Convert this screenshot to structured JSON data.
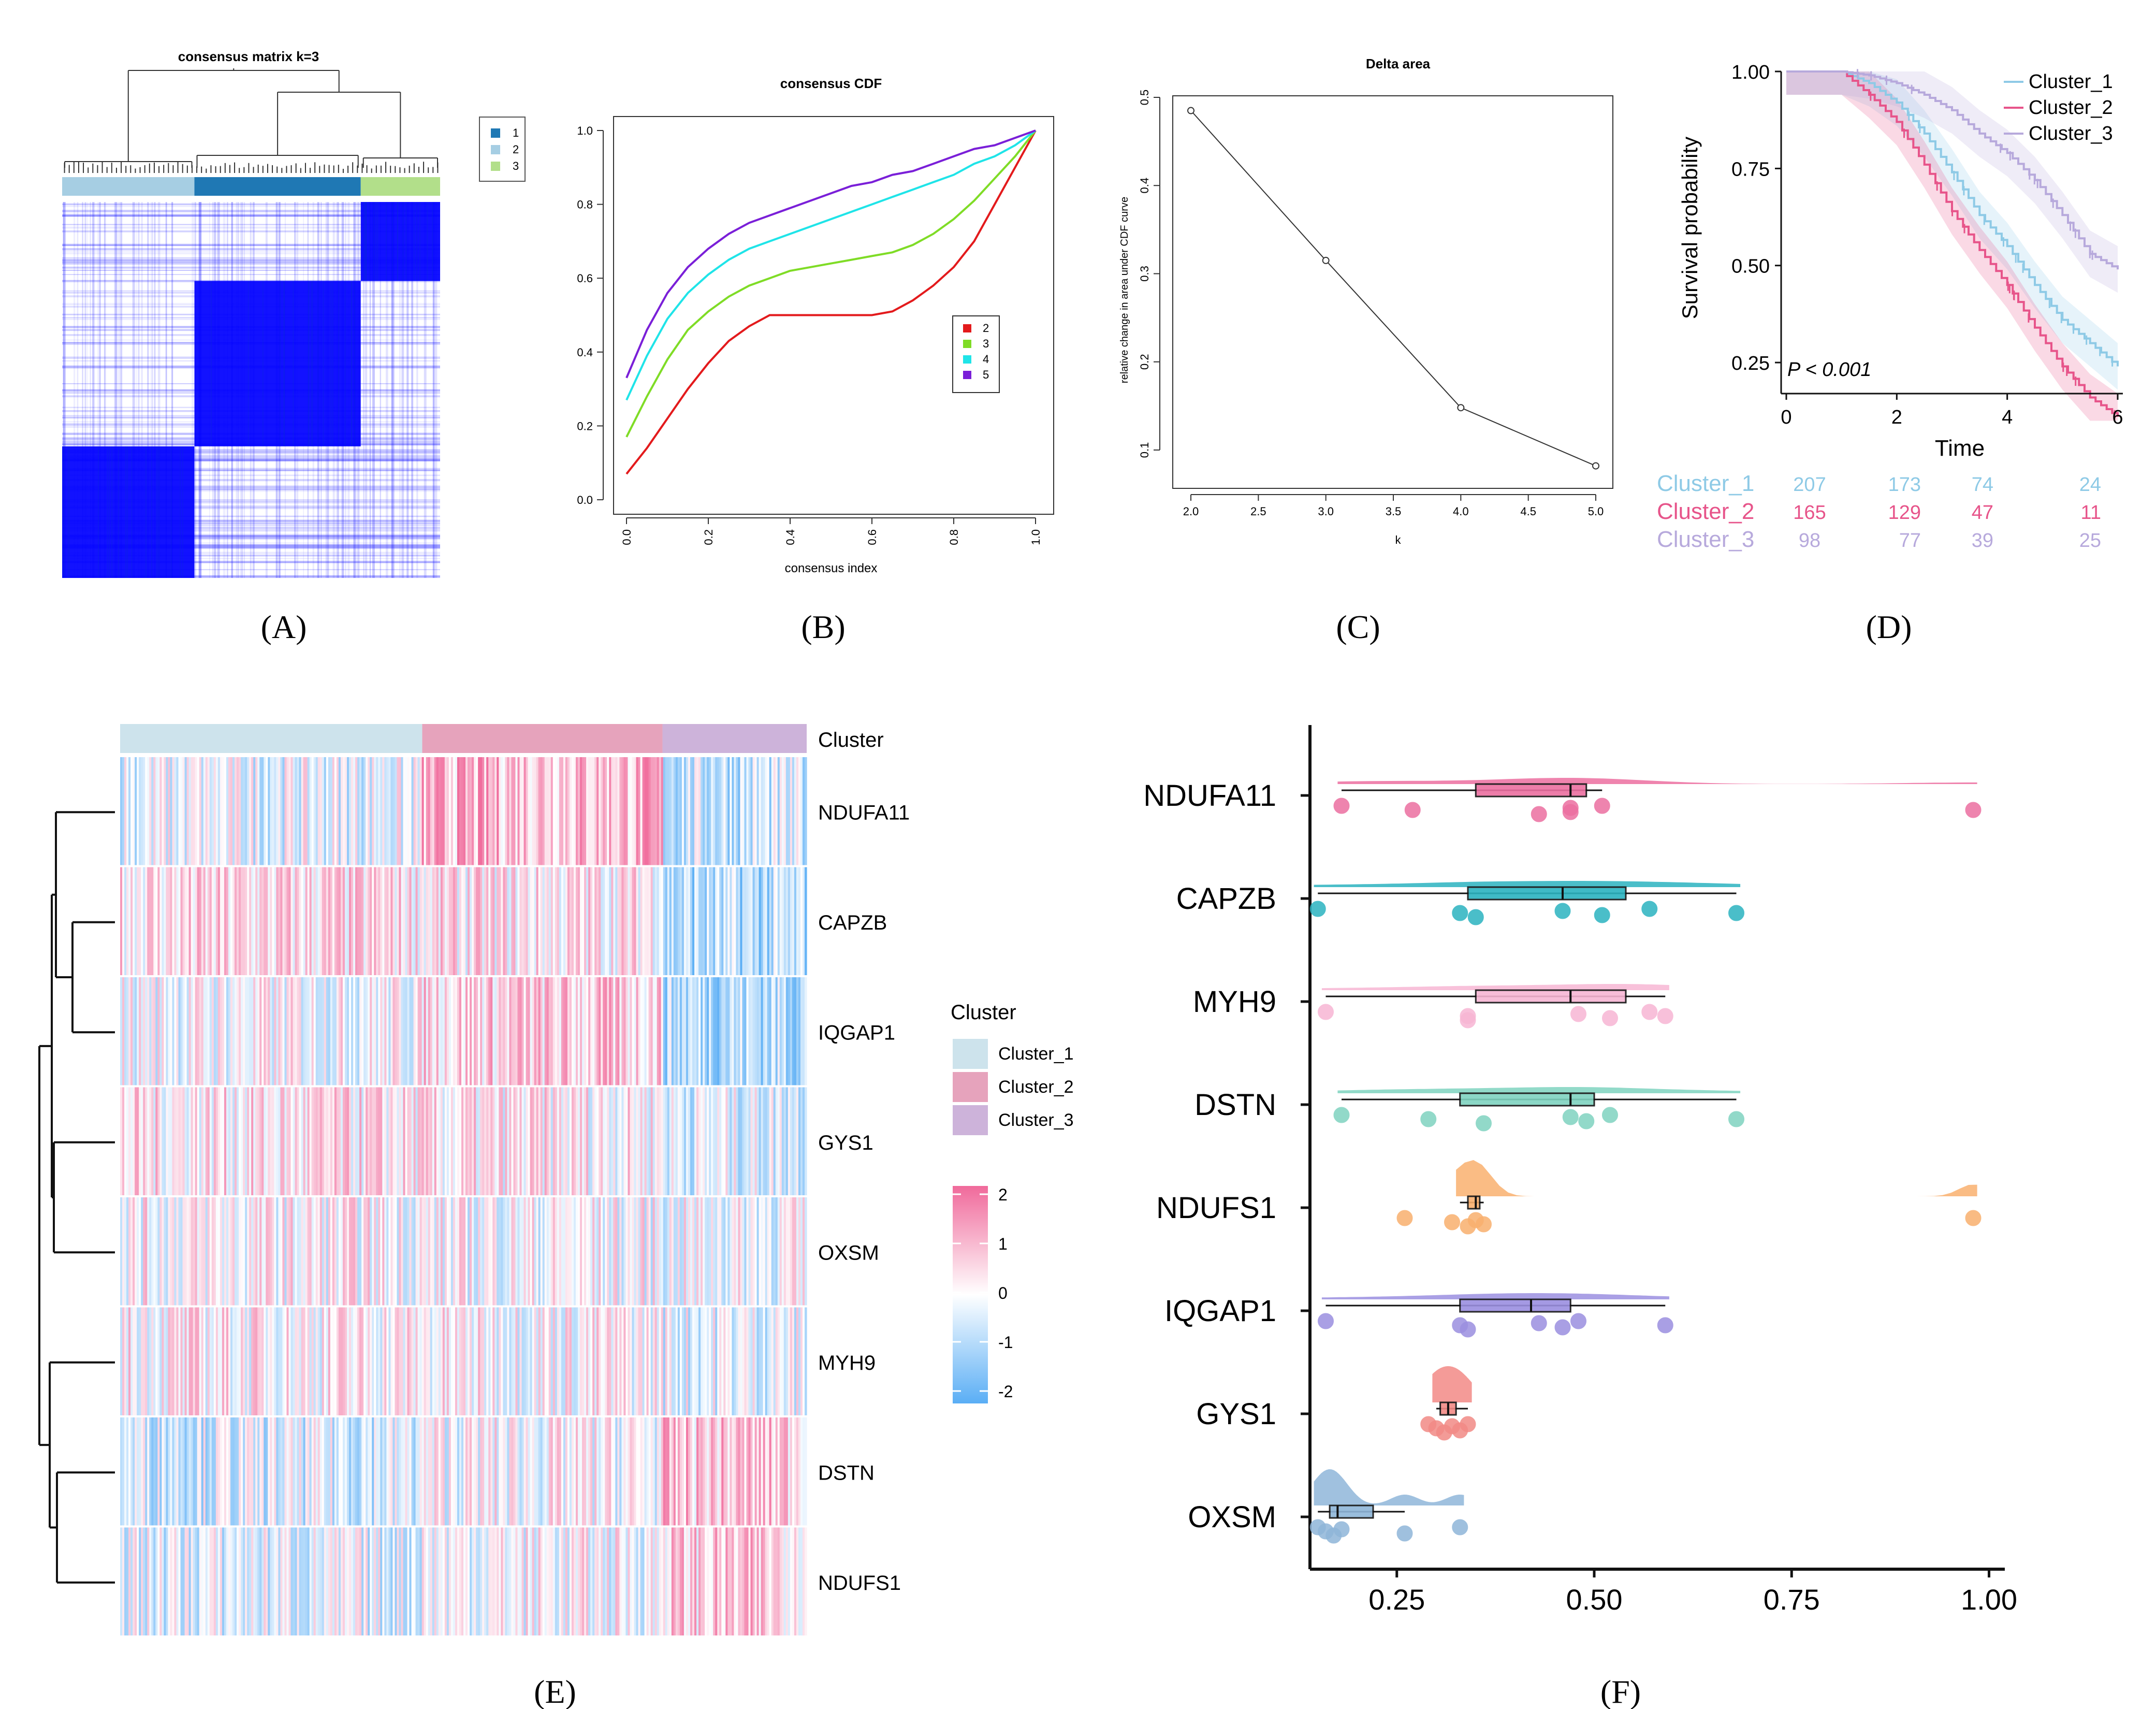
{
  "panel_labels": [
    "(A)",
    "(B)",
    "(C)",
    "(D)",
    "(E)",
    "(F)"
  ],
  "colors": {
    "cluster1": "#a6cee3",
    "cluster2": "#1f78b4",
    "cluster3": "#b2df8a",
    "heat_high": "#0000ff",
    "k2": "#e31a1c",
    "k3": "#7fdc26",
    "k4": "#1fe4e8",
    "k5": "#7a1fd8",
    "km1": "#8ecae6",
    "km2": "#e7548a",
    "km3": "#b7a9dc",
    "e_c1": "#cde3ec",
    "e_c2": "#e6a3bc",
    "e_c3": "#cdb3da",
    "hi": "#f06a9b",
    "lo": "#5aaef5"
  },
  "chart_data": [
    {
      "type": "heatmap",
      "title": "consensus matrix k=3",
      "legend": [
        "1",
        "2",
        "3"
      ],
      "cluster_bar_fractions": [
        0.35,
        0.44,
        0.21
      ],
      "blocks": [
        {
          "cluster": "1",
          "fraction": 0.35,
          "consensus": 1.0
        },
        {
          "cluster": "2",
          "fraction": 0.44,
          "consensus": 1.0
        },
        {
          "cluster": "3",
          "fraction": 0.21,
          "consensus": 1.0
        }
      ]
    },
    {
      "type": "line",
      "title": "consensus CDF",
      "xlabel": "consensus index",
      "ylabel": "",
      "xlim": [
        0,
        1
      ],
      "ylim": [
        0,
        1
      ],
      "x_ticks": [
        "0.0",
        "0.2",
        "0.4",
        "0.6",
        "0.8",
        "1.0"
      ],
      "y_ticks": [
        "0.0",
        "0.2",
        "0.4",
        "0.6",
        "0.8",
        "1.0"
      ],
      "x": [
        0.0,
        0.05,
        0.1,
        0.15,
        0.2,
        0.25,
        0.3,
        0.35,
        0.4,
        0.45,
        0.5,
        0.55,
        0.6,
        0.65,
        0.7,
        0.75,
        0.8,
        0.85,
        0.9,
        0.95,
        1.0
      ],
      "series": [
        {
          "name": "2",
          "values": [
            0.07,
            0.14,
            0.22,
            0.3,
            0.37,
            0.43,
            0.47,
            0.5,
            0.5,
            0.5,
            0.5,
            0.5,
            0.5,
            0.51,
            0.54,
            0.58,
            0.63,
            0.7,
            0.8,
            0.9,
            1.0
          ]
        },
        {
          "name": "3",
          "values": [
            0.17,
            0.28,
            0.38,
            0.46,
            0.51,
            0.55,
            0.58,
            0.6,
            0.62,
            0.63,
            0.64,
            0.65,
            0.66,
            0.67,
            0.69,
            0.72,
            0.76,
            0.81,
            0.87,
            0.93,
            1.0
          ]
        },
        {
          "name": "4",
          "values": [
            0.27,
            0.39,
            0.49,
            0.56,
            0.61,
            0.65,
            0.68,
            0.7,
            0.72,
            0.74,
            0.76,
            0.78,
            0.8,
            0.82,
            0.84,
            0.86,
            0.88,
            0.91,
            0.93,
            0.96,
            1.0
          ]
        },
        {
          "name": "5",
          "values": [
            0.33,
            0.46,
            0.56,
            0.63,
            0.68,
            0.72,
            0.75,
            0.77,
            0.79,
            0.81,
            0.83,
            0.85,
            0.86,
            0.88,
            0.89,
            0.91,
            0.93,
            0.95,
            0.96,
            0.98,
            1.0
          ]
        }
      ]
    },
    {
      "type": "line",
      "title": "Delta area",
      "xlabel": "k",
      "ylabel": "relative change in area under CDF curve",
      "xlim": [
        2,
        5
      ],
      "ylim": [
        0.1,
        0.5
      ],
      "x_ticks": [
        "2.0",
        "2.5",
        "3.0",
        "3.5",
        "4.0",
        "4.5",
        "5.0"
      ],
      "y_ticks": [
        "0.1",
        "0.2",
        "0.3",
        "0.4",
        "0.5"
      ],
      "x": [
        2,
        3,
        4,
        5
      ],
      "series": [
        {
          "values": [
            0.485,
            0.315,
            0.148,
            0.082
          ]
        }
      ]
    },
    {
      "type": "line",
      "title": "",
      "xlabel": "Time",
      "ylabel": "Survival probability",
      "xlim": [
        0,
        6
      ],
      "ylim": [
        0,
        1
      ],
      "x_ticks": [
        "0",
        "2",
        "4",
        "6"
      ],
      "y_ticks": [
        "0.25",
        "0.50",
        "0.75",
        "1.00"
      ],
      "annotation": "P < 0.001",
      "legend_position": "top-right",
      "series": [
        {
          "name": "Cluster_1",
          "x": [
            0,
            1.0,
            1.5,
            2.0,
            2.5,
            3.0,
            3.5,
            4.0,
            4.5,
            5.0,
            5.5,
            6.0
          ],
          "values": [
            1.0,
            1.0,
            0.97,
            0.92,
            0.84,
            0.74,
            0.63,
            0.55,
            0.45,
            0.36,
            0.3,
            0.24
          ]
        },
        {
          "name": "Cluster_2",
          "x": [
            0,
            1.0,
            1.5,
            2.0,
            2.5,
            3.0,
            3.5,
            4.0,
            4.5,
            5.0,
            5.5,
            6.0
          ],
          "values": [
            1.0,
            1.0,
            0.94,
            0.87,
            0.76,
            0.64,
            0.54,
            0.45,
            0.34,
            0.24,
            0.16,
            0.11
          ]
        },
        {
          "name": "Cluster_3",
          "x": [
            0,
            1.0,
            1.5,
            2.0,
            2.5,
            3.0,
            3.5,
            4.0,
            4.5,
            5.0,
            5.5,
            6.0
          ],
          "values": [
            1.0,
            1.0,
            0.99,
            0.97,
            0.94,
            0.9,
            0.84,
            0.79,
            0.72,
            0.63,
            0.53,
            0.49
          ]
        }
      ],
      "risk_table": [
        {
          "name": "Cluster_1",
          "counts": [
            "207",
            "173",
            "74",
            "24"
          ]
        },
        {
          "name": "Cluster_2",
          "counts": [
            "165",
            "129",
            "47",
            "11"
          ]
        },
        {
          "name": "Cluster_3",
          "counts": [
            "98",
            "77",
            "39",
            "25"
          ]
        }
      ]
    },
    {
      "type": "heatmap",
      "title": "",
      "annotation_label": "Cluster",
      "rows": [
        "NDUFA11",
        "CAPZB",
        "IQGAP1",
        "GYS1",
        "OXSM",
        "MYH9",
        "DSTN",
        "NDUFS1"
      ],
      "column_groups": [
        {
          "name": "Cluster_1",
          "fraction": 0.44
        },
        {
          "name": "Cluster_2",
          "fraction": 0.35
        },
        {
          "name": "Cluster_3",
          "fraction": 0.21
        }
      ],
      "row_means_by_group": [
        [
          -0.2,
          0.9,
          -0.6
        ],
        [
          0.4,
          0.3,
          -0.9
        ],
        [
          0.0,
          0.6,
          -0.8
        ],
        [
          0.3,
          0.2,
          -0.3
        ],
        [
          0.1,
          0.0,
          -0.1
        ],
        [
          0.2,
          0.1,
          -0.2
        ],
        [
          -0.4,
          0.0,
          0.7
        ],
        [
          -0.3,
          0.0,
          0.6
        ]
      ],
      "legend_title": "Cluster",
      "legend_items": [
        "Cluster_1",
        "Cluster_2",
        "Cluster_3"
      ],
      "scale_ticks": [
        "2",
        "1",
        "0",
        "-1",
        "-2"
      ],
      "scale_range": [
        -2,
        2
      ]
    },
    {
      "type": "scatter",
      "title": "",
      "xlabel": "",
      "ylabel": "",
      "xlim": [
        0.14,
        1.02
      ],
      "x_ticks": [
        "0.25",
        "0.50",
        "0.75",
        "1.00"
      ],
      "categories": [
        "NDUFA11",
        "CAPZB",
        "MYH9",
        "DSTN",
        "NDUFS1",
        "IQGAP1",
        "GYS1",
        "OXSM"
      ],
      "series": [
        {
          "name": "NDUFA11",
          "color": "#ec6fa0",
          "points": [
            0.18,
            0.27,
            0.43,
            0.47,
            0.47,
            0.51,
            0.98
          ],
          "box": [
            0.18,
            0.35,
            0.47,
            0.49,
            0.51
          ]
        },
        {
          "name": "CAPZB",
          "color": "#2bb3c0",
          "points": [
            0.15,
            0.33,
            0.35,
            0.46,
            0.51,
            0.57,
            0.68
          ],
          "box": [
            0.15,
            0.34,
            0.46,
            0.54,
            0.68
          ]
        },
        {
          "name": "MYH9",
          "color": "#f7b6d4",
          "points": [
            0.16,
            0.34,
            0.34,
            0.48,
            0.52,
            0.57,
            0.59
          ],
          "box": [
            0.16,
            0.35,
            0.47,
            0.54,
            0.59
          ]
        },
        {
          "name": "DSTN",
          "color": "#7fd3c0",
          "points": [
            0.18,
            0.29,
            0.36,
            0.47,
            0.49,
            0.52,
            0.68
          ],
          "box": [
            0.18,
            0.33,
            0.47,
            0.5,
            0.68
          ]
        },
        {
          "name": "NDUFS1",
          "color": "#f9b06e",
          "points": [
            0.26,
            0.32,
            0.34,
            0.35,
            0.36,
            0.98
          ],
          "box": [
            0.33,
            0.34,
            0.35,
            0.355,
            0.36
          ]
        },
        {
          "name": "IQGAP1",
          "color": "#9b8fe0",
          "points": [
            0.16,
            0.33,
            0.34,
            0.43,
            0.46,
            0.48,
            0.59
          ],
          "box": [
            0.16,
            0.33,
            0.42,
            0.47,
            0.59
          ]
        },
        {
          "name": "GYS1",
          "color": "#f28a86",
          "points": [
            0.29,
            0.3,
            0.31,
            0.32,
            0.33,
            0.34
          ],
          "box": [
            0.3,
            0.305,
            0.315,
            0.325,
            0.34
          ]
        },
        {
          "name": "OXSM",
          "color": "#8fb6d9",
          "points": [
            0.15,
            0.16,
            0.17,
            0.18,
            0.26,
            0.33
          ],
          "box": [
            0.15,
            0.165,
            0.175,
            0.22,
            0.26
          ]
        }
      ]
    }
  ]
}
